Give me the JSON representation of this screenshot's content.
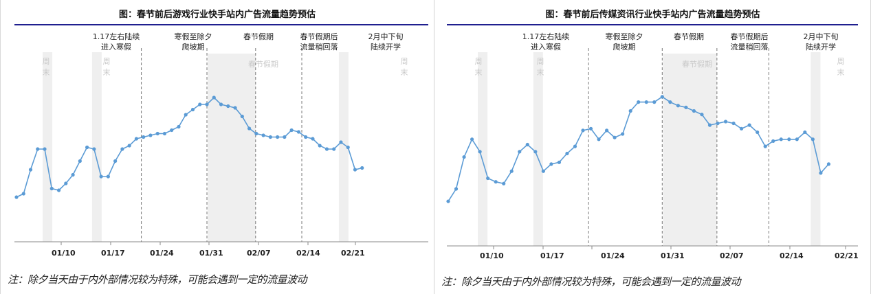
{
  "chart_data": [
    {
      "type": "line",
      "title": "图：春节前后游戏行业快手站内广告流量趋势预估",
      "xlabel": "",
      "ylabel": "",
      "x_tick_labels": [
        "01/10",
        "01/17",
        "01/24",
        "01/31",
        "02/07",
        "02/14",
        "02/21"
      ],
      "grid": false,
      "legend": null,
      "ylim": [
        0,
        100
      ],
      "y_unit": "relative index (no y-axis shown)",
      "x": [
        "01/04",
        "01/05",
        "01/06",
        "01/07",
        "01/08",
        "01/09",
        "01/10",
        "01/11",
        "01/12",
        "01/13",
        "01/14",
        "01/15",
        "01/16",
        "01/17",
        "01/18",
        "01/19",
        "01/20",
        "01/21",
        "01/22",
        "01/23",
        "01/24",
        "01/25",
        "01/26",
        "01/27",
        "01/28",
        "01/29",
        "01/30",
        "01/31",
        "02/01",
        "02/02",
        "02/03",
        "02/04",
        "02/05",
        "02/06",
        "02/07",
        "02/08",
        "02/09",
        "02/10",
        "02/11",
        "02/12",
        "02/13",
        "02/14",
        "02/15",
        "02/16",
        "02/17",
        "02/18",
        "02/19",
        "02/20",
        "02/21",
        "02/22"
      ],
      "series": [
        {
          "name": "广告流量",
          "color": "#5b9bd5",
          "values": [
            26,
            28,
            42,
            54,
            54,
            31,
            30,
            34,
            39,
            47,
            55,
            54,
            38,
            38,
            47,
            54,
            56,
            60,
            61,
            62,
            63,
            63,
            65,
            67,
            74,
            77,
            80,
            80,
            84,
            80,
            79,
            78,
            73,
            66,
            63,
            62,
            61,
            61,
            61,
            65,
            64,
            61,
            60,
            56,
            54,
            54,
            58,
            55,
            42,
            43
          ]
        }
      ],
      "shaded_regions": [
        {
          "label": "周末",
          "from": "01/08",
          "to": "01/09"
        },
        {
          "label": "周末",
          "from": "01/15",
          "to": "01/16"
        },
        {
          "label": "春节假期",
          "from": "01/31",
          "to": "02/06"
        },
        {
          "label": "周末",
          "from": "02/19",
          "to": "02/20"
        }
      ],
      "phase_dividers": [
        "01/22",
        "01/31",
        "02/06",
        "02/13"
      ],
      "annotations": [
        {
          "text": "1.17左右陆续\n进入寒假"
        },
        {
          "text": "寒假至除夕\n爬坡期"
        },
        {
          "text": "春节假期"
        },
        {
          "text": "春节假期后\n流量稍回落"
        },
        {
          "text": "2月中下旬\n陆续开学"
        }
      ]
    },
    {
      "type": "line",
      "title": "图：春节前后传媒资讯行业快手站内广告流量趋势预估",
      "xlabel": "",
      "ylabel": "",
      "x_tick_labels": [
        "01/10",
        "01/17",
        "01/24",
        "01/31",
        "02/07",
        "02/14",
        "02/21"
      ],
      "grid": false,
      "legend": null,
      "ylim": [
        0,
        100
      ],
      "y_unit": "relative index (no y-axis shown)",
      "x": [
        "01/04",
        "01/05",
        "01/06",
        "01/07",
        "01/08",
        "01/09",
        "01/10",
        "01/11",
        "01/12",
        "01/13",
        "01/14",
        "01/15",
        "01/16",
        "01/17",
        "01/18",
        "01/19",
        "01/20",
        "01/21",
        "01/22",
        "01/23",
        "01/24",
        "01/25",
        "01/26",
        "01/27",
        "01/28",
        "01/29",
        "01/30",
        "01/31",
        "02/01",
        "02/02",
        "02/03",
        "02/04",
        "02/05",
        "02/06",
        "02/07",
        "02/08",
        "02/09",
        "02/10",
        "02/11",
        "02/12",
        "02/13",
        "02/14",
        "02/15",
        "02/16",
        "02/17",
        "02/18",
        "02/19",
        "02/20",
        "02/21"
      ],
      "series": [
        {
          "name": "广告流量",
          "color": "#5b9bd5",
          "values": [
            24,
            31,
            49,
            59,
            52,
            37,
            35,
            34,
            41,
            52,
            56,
            52,
            41,
            45,
            46,
            51,
            55,
            64,
            65,
            59,
            64,
            60,
            62,
            75,
            80,
            80,
            80,
            83,
            80,
            78,
            77,
            75,
            73,
            67,
            68,
            69,
            68,
            65,
            67,
            63,
            55,
            58,
            59,
            59,
            59,
            63,
            59,
            40,
            45
          ]
        }
      ],
      "shaded_regions": [
        {
          "label": "周末",
          "from": "01/08",
          "to": "01/09"
        },
        {
          "label": "周末",
          "from": "01/15",
          "to": "01/16"
        },
        {
          "label": "春节假期",
          "from": "01/31",
          "to": "02/06"
        },
        {
          "label": "周末",
          "from": "02/19",
          "to": "02/20"
        }
      ],
      "phase_dividers": [
        "01/22",
        "01/31",
        "02/06",
        "02/13"
      ],
      "annotations": [
        {
          "text": "1.17左右陆续\n进入寒假"
        },
        {
          "text": "寒假至除夕\n爬坡期"
        },
        {
          "text": "春节假期"
        },
        {
          "text": "春节假期后\n流量稍回落"
        },
        {
          "text": "2月中下旬\n陆续开学"
        }
      ]
    }
  ],
  "left": {
    "title": "图：春节前后游戏行业快手站内广告流量趋势预估",
    "annotations": [
      "1.17左右陆续\n进入寒假",
      "寒假至除夕\n爬坡期",
      "春节假期",
      "春节假期后\n流量稍回落",
      "2月中下旬\n陆续开学"
    ],
    "weekend_label": "周\n末",
    "holiday_label": "春节假期",
    "ticks": [
      "01/10",
      "01/17",
      "01/24",
      "01/31",
      "02/07",
      "02/14",
      "02/21"
    ],
    "note": "注：除夕当天由于内外部情况较为特殊，可能会遇到一定的流量波动"
  },
  "right": {
    "title": "图：春节前后传媒资讯行业快手站内广告流量趋势预估",
    "annotations": [
      "1.17左右陆续\n进入寒假",
      "寒假至除夕\n爬坡期",
      "春节假期",
      "春节假期后\n流量稍回落",
      "2月中下旬\n陆续开学"
    ],
    "weekend_label": "周\n末",
    "holiday_label": "春节假期",
    "ticks": [
      "01/10",
      "01/17",
      "01/24",
      "01/31",
      "02/07",
      "02/14",
      "02/21"
    ],
    "note": "注：除夕当天由于内外部情况较为特殊，可能会遇到一定的流量波动"
  },
  "colors": {
    "line": "#5b9bd5",
    "title_rule": "#1f1f8f",
    "shade": "#efefef",
    "divider": "#777777",
    "axis": "#888888"
  }
}
